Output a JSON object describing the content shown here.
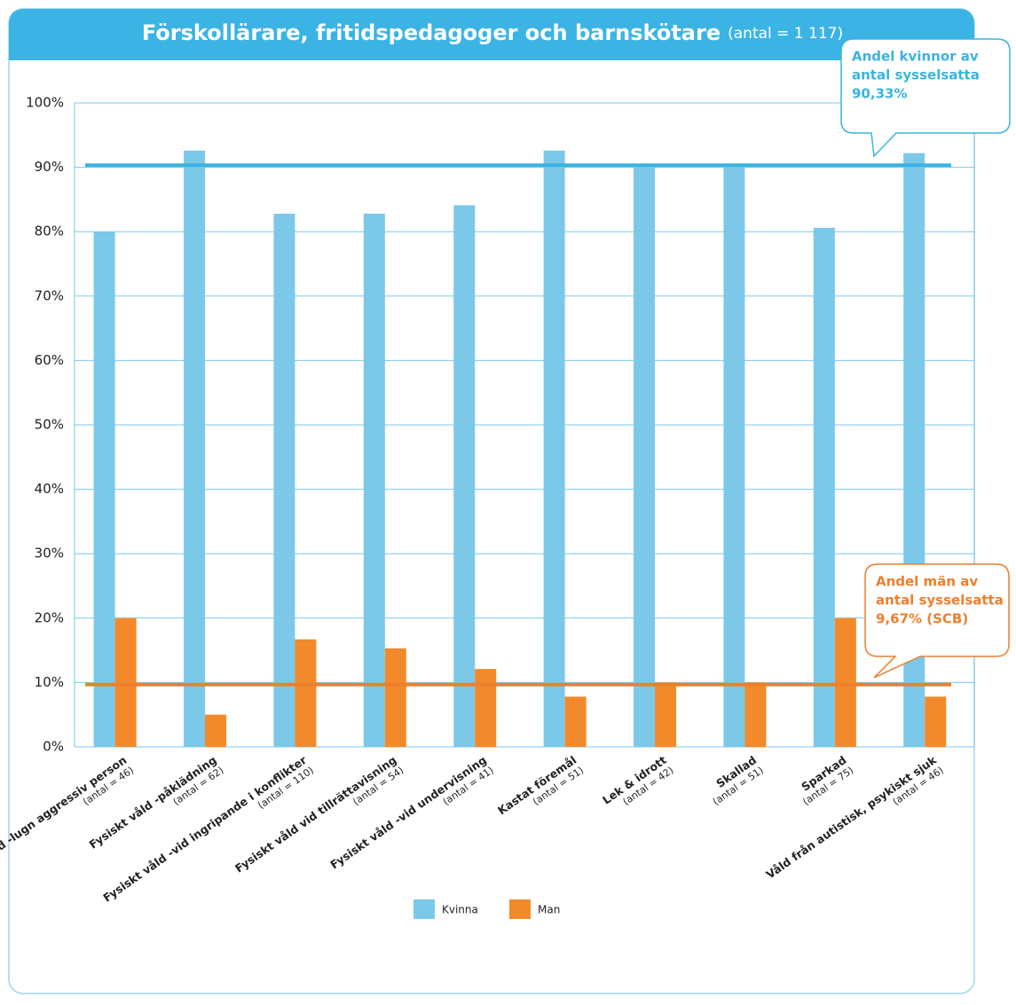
{
  "chart_data": {
    "type": "bar",
    "title": "Förskollärare, fritidspedagoger och barnskötare",
    "subtitle": "(antal = 1 117)",
    "categories": [
      "Fysiskt våld -lugn aggressiv person",
      "Fysiskt våld -påklädning",
      "Fysiskt våld -vid ingripande i konflikter",
      "Fysiskt våld vid tillrättavisning",
      "Fysiskt våld -vid undervisning",
      "Kastat föremål",
      "Lek & idrott",
      "Skallad",
      "Sparkad",
      "Våld från autistisk, psykiskt sjuk"
    ],
    "category_counts": [
      "(antal = 46)",
      "(antal = 62)",
      "(antal = 110)",
      "(antal = 54)",
      "(antal = 41)",
      "(antal = 51)",
      "(antal = 42)",
      "(antal = 51)",
      "(antal = 75)",
      "(antal = 46)"
    ],
    "series": [
      {
        "name": "Kvinna",
        "color": "#7cc8e9",
        "values": [
          80,
          92.6,
          82.8,
          82.8,
          84.1,
          92.6,
          90,
          90,
          80.6,
          92.2
        ]
      },
      {
        "name": "Man",
        "color": "#f28a2c",
        "values": [
          20,
          5,
          16.7,
          15.3,
          12.1,
          7.8,
          10,
          10,
          20,
          7.8
        ]
      }
    ],
    "ylim": [
      0,
      100
    ],
    "yticks": [
      {
        "value": 0,
        "label": "0%"
      },
      {
        "value": 10,
        "label": "10%"
      },
      {
        "value": 20,
        "label": "20%"
      },
      {
        "value": 30,
        "label": "30%"
      },
      {
        "value": 40,
        "label": "40%"
      },
      {
        "value": 50,
        "label": "50%"
      },
      {
        "value": 60,
        "label": "60%"
      },
      {
        "value": 70,
        "label": "70%"
      },
      {
        "value": 80,
        "label": "80%"
      },
      {
        "value": 90,
        "label": "90%"
      },
      {
        "value": 100,
        "label": "100%"
      }
    ],
    "grid": true,
    "reference_lines": [
      {
        "value": 90.33,
        "color": "#3ab3e0",
        "annotation": [
          "Andel kvinnor av",
          "antal sysselsatta",
          "90,33%"
        ]
      },
      {
        "value": 9.67,
        "color": "#ee7f2d",
        "annotation": [
          "Andel män av",
          "antal sysselsatta",
          "9,67% (SCB)"
        ]
      }
    ],
    "legend": "bottom"
  }
}
